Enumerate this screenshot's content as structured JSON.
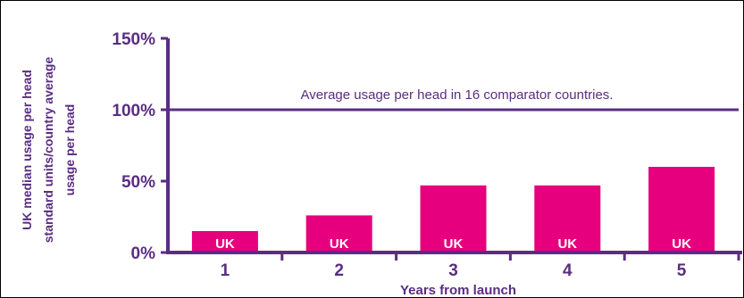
{
  "chart_data": {
    "type": "bar",
    "categories": [
      "1",
      "2",
      "3",
      "4",
      "5"
    ],
    "values": [
      15,
      26,
      47,
      47,
      60
    ],
    "bar_labels": [
      "UK",
      "UK",
      "UK",
      "UK",
      "UK"
    ],
    "xlabel": "Years from launch",
    "ylabel_lines": [
      "UK median usage per head",
      "standard units/country average",
      "usage per head"
    ],
    "ylim": [
      0,
      150
    ],
    "yticks": [
      0,
      50,
      100,
      150
    ],
    "ytick_labels": [
      "0%",
      "50%",
      "100%",
      "150%"
    ],
    "reference_line": {
      "value": 100,
      "label": "Average usage per head in 16 comparator countries."
    },
    "grid": false,
    "colors": {
      "bar": "#e6007e",
      "axis": "#5a2d82",
      "text": "#5a2d82"
    }
  }
}
